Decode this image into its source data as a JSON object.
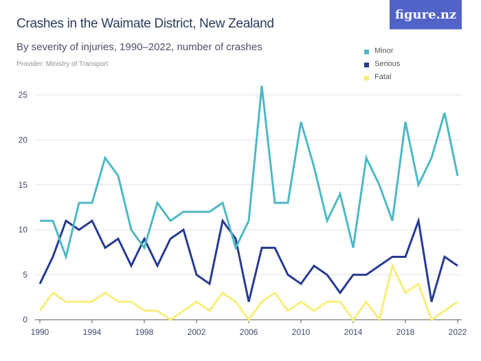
{
  "header": {
    "title": "Crashes in the Waimate District, New Zealand",
    "subtitle": "By severity of injuries, 1990–2022, number of crashes",
    "provider": "Provider: Ministry of Transport",
    "logo": "figure.nz",
    "logo_color": "#5263c8"
  },
  "chart_data": {
    "type": "line",
    "title": "Crashes in the Waimate District, New Zealand",
    "subtitle": "By severity of injuries, 1990–2022, number of crashes",
    "xlabel": "",
    "ylabel": "",
    "x": [
      1990,
      1991,
      1992,
      1993,
      1994,
      1995,
      1996,
      1997,
      1998,
      1999,
      2000,
      2001,
      2002,
      2003,
      2004,
      2005,
      2006,
      2007,
      2008,
      2009,
      2010,
      2011,
      2012,
      2013,
      2014,
      2015,
      2016,
      2017,
      2018,
      2019,
      2020,
      2021,
      2022
    ],
    "xlim": [
      1990,
      2022
    ],
    "xticks": [
      "1990",
      "1994",
      "1998",
      "2002",
      "2006",
      "2010",
      "2014",
      "2018",
      "2022"
    ],
    "ylim": [
      0,
      25
    ],
    "yticks": [
      "0",
      "5",
      "10",
      "15",
      "20",
      "25"
    ],
    "grid": true,
    "legend_position": "top-right",
    "series": [
      {
        "name": "Minor",
        "color": "#4db8c4",
        "values": [
          11,
          11,
          7,
          13,
          13,
          18,
          16,
          10,
          8,
          13,
          11,
          12,
          12,
          12,
          13,
          8,
          11,
          26,
          13,
          13,
          22,
          17,
          11,
          14,
          8,
          18,
          15,
          11,
          22,
          15,
          18,
          23,
          16
        ]
      },
      {
        "name": "Serious",
        "color": "#253a93",
        "values": [
          4,
          7,
          11,
          10,
          11,
          8,
          9,
          6,
          9,
          6,
          9,
          10,
          5,
          4,
          11,
          9,
          2,
          8,
          8,
          5,
          4,
          6,
          5,
          3,
          5,
          5,
          6,
          7,
          7,
          11,
          2,
          7,
          6
        ]
      },
      {
        "name": "Fatal",
        "color": "#f7ee7a",
        "values": [
          1,
          3,
          2,
          2,
          2,
          3,
          2,
          2,
          1,
          1,
          0,
          1,
          2,
          1,
          3,
          2,
          0,
          2,
          3,
          1,
          2,
          1,
          2,
          2,
          0,
          2,
          0,
          6,
          3,
          4,
          0,
          1,
          2
        ]
      }
    ]
  }
}
